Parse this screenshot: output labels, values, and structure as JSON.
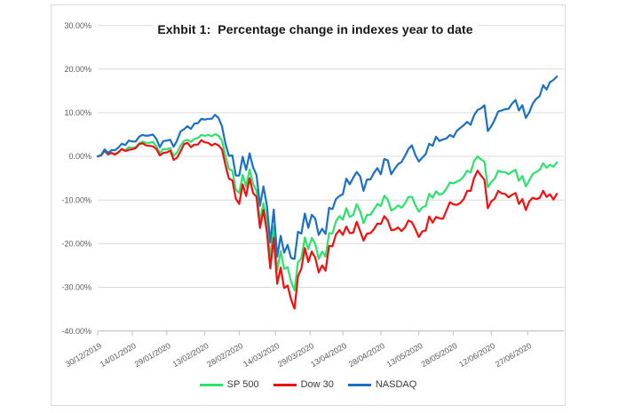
{
  "chart_data": {
    "type": "line",
    "title": "Exhbit 1:  Percentage change in indexes year to date",
    "xlabel": "",
    "ylabel": "",
    "ylim": [
      -40,
      30
    ],
    "grid": "horizontal",
    "legend_position": "bottom",
    "y_ticks": [
      30,
      20,
      10,
      0,
      -10,
      -20,
      -30,
      -40
    ],
    "y_tick_labels": [
      "30.00%",
      "20.00%",
      "10.00%",
      "0.00%",
      "-10.00%",
      "-20.00%",
      "-30.00%",
      "-40.00%"
    ],
    "x_tick_labels": [
      "30/12/2019",
      "14/01/2020",
      "29/01/2020",
      "13/02/2020",
      "28/02/2020",
      "14/03/2020",
      "29/03/2020",
      "13/04/2020",
      "28/04/2020",
      "13/05/2020",
      "28/05/2020",
      "12/06/2020",
      "27/06/2020"
    ],
    "x_tick_indices": [
      0,
      10,
      20,
      31,
      41,
      51.5,
      61.5,
      71,
      82,
      93,
      103,
      114,
      124.5
    ],
    "x_index_max": 135,
    "colors": {
      "grid": "#DCDCDC",
      "axis": "#BFBFBF",
      "axis_text": "#595959",
      "title_text": "#151515",
      "legend_text": "#3a3a3a",
      "frame_border": "#D9D9D9"
    },
    "series": [
      {
        "name": "SP 500",
        "color": "#2BE26D",
        "values": [
          0.0,
          0.3,
          1.1,
          0.4,
          0.8,
          0.5,
          1.0,
          1.7,
          1.4,
          2.1,
          1.9,
          2.1,
          3.0,
          3.4,
          3.1,
          3.1,
          3.3,
          2.3,
          0.7,
          1.7,
          1.6,
          1.9,
          0.1,
          0.9,
          2.4,
          3.5,
          3.8,
          3.3,
          4.0,
          4.2,
          4.9,
          4.7,
          4.9,
          4.6,
          5.1,
          4.7,
          3.6,
          0.1,
          -2.9,
          -3.3,
          -7.6,
          -8.4,
          -4.2,
          -6.9,
          -3.0,
          -6.3,
          -7.9,
          -14.9,
          -10.7,
          -15.1,
          -23.2,
          -16.1,
          -26.1,
          -21.7,
          -25.8,
          -25.4,
          -28.7,
          -30.7,
          -24.2,
          -23.4,
          -18.6,
          -21.3,
          -18.7,
          -20.0,
          -23.5,
          -21.8,
          -23.0,
          -17.6,
          -17.7,
          -14.9,
          -13.7,
          -14.5,
          -11.9,
          -13.9,
          -13.4,
          -11.0,
          -12.6,
          -15.3,
          -13.4,
          -13.4,
          -12.2,
          -10.9,
          -11.4,
          -9.0,
          -9.9,
          -12.4,
          -12.0,
          -11.2,
          -11.8,
          -10.8,
          -9.3,
          -9.3,
          -11.2,
          -12.7,
          -11.7,
          -11.4,
          -8.6,
          -9.5,
          -8.0,
          -8.8,
          -8.5,
          -7.4,
          -6.0,
          -6.2,
          -5.8,
          -5.4,
          -4.6,
          -3.3,
          -3.7,
          -1.1,
          0.0,
          -0.7,
          -1.2,
          -7.1,
          -5.9,
          -5.1,
          -3.3,
          -3.6,
          -3.6,
          -4.1,
          -3.5,
          -3.1,
          -5.6,
          -4.5,
          -6.9,
          -5.5,
          -4.0,
          -3.6,
          -3.1,
          -1.6,
          -2.6,
          -1.9,
          -2.4,
          -1.4
        ]
      },
      {
        "name": "Dow 30",
        "color": "#F40E0E",
        "values": [
          0.0,
          0.2,
          1.4,
          0.5,
          0.8,
          0.4,
          0.9,
          1.7,
          1.2,
          1.5,
          1.6,
          1.9,
          2.8,
          3.0,
          2.5,
          2.4,
          2.3,
          1.7,
          0.2,
          0.8,
          0.9,
          1.3,
          -0.8,
          -0.3,
          1.1,
          2.8,
          3.1,
          2.1,
          2.7,
          2.7,
          3.7,
          3.2,
          3.1,
          2.5,
          2.9,
          2.5,
          1.6,
          -2.0,
          -5.1,
          -5.5,
          -9.7,
          -10.9,
          -6.4,
          -9.1,
          -5.0,
          -8.4,
          -9.3,
          -16.4,
          -12.3,
          -17.4,
          -25.7,
          -18.7,
          -29.2,
          -25.5,
          -30.2,
          -29.6,
          -32.8,
          -34.9,
          -27.5,
          -25.7,
          -21.0,
          -24.2,
          -21.8,
          -23.2,
          -26.6,
          -25.0,
          -26.2,
          -20.5,
          -20.6,
          -17.9,
          -16.9,
          -18.0,
          -16.1,
          -17.6,
          -17.5,
          -15.0,
          -17.1,
          -19.3,
          -17.7,
          -17.6,
          -16.7,
          -15.4,
          -15.5,
          -13.7,
          -14.7,
          -16.9,
          -16.8,
          -16.3,
          -17.1,
          -16.3,
          -14.7,
          -15.1,
          -16.7,
          -18.5,
          -17.2,
          -17.0,
          -13.8,
          -15.2,
          -13.9,
          -14.2,
          -14.3,
          -12.4,
          -10.5,
          -11.0,
          -11.1,
          -10.7,
          -9.8,
          -7.9,
          -7.9,
          -5.0,
          -3.3,
          -4.4,
          -5.4,
          -11.9,
          -10.3,
          -9.7,
          -7.9,
          -8.5,
          -8.6,
          -9.4,
          -8.8,
          -8.4,
          -10.9,
          -9.8,
          -12.3,
          -10.3,
          -9.5,
          -9.8,
          -9.5,
          -7.9,
          -9.3,
          -8.7,
          -9.9,
          -8.6
        ]
      },
      {
        "name": "NASDAQ",
        "color": "#1A70C7",
        "values": [
          0.0,
          0.3,
          1.6,
          0.8,
          1.4,
          1.4,
          2.0,
          2.9,
          2.6,
          3.6,
          3.4,
          3.4,
          4.5,
          4.9,
          4.7,
          4.8,
          5.0,
          4.0,
          2.1,
          3.5,
          3.6,
          3.8,
          2.2,
          3.6,
          5.7,
          6.2,
          6.9,
          6.3,
          7.5,
          7.6,
          8.6,
          8.4,
          8.6,
          8.6,
          9.5,
          8.8,
          6.9,
          2.9,
          0.1,
          0.2,
          -4.4,
          -4.4,
          -0.1,
          -3.1,
          0.7,
          -2.5,
          -4.3,
          -11.3,
          -6.9,
          -11.3,
          -19.7,
          -12.2,
          -23.0,
          -18.2,
          -22.1,
          -20.3,
          -23.3,
          -23.5,
          -17.3,
          -17.7,
          -13.1,
          -16.4,
          -13.4,
          -14.2,
          -18.0,
          -16.6,
          -17.8,
          -11.8,
          -12.1,
          -9.8,
          -9.1,
          -8.7,
          -5.1,
          -6.4,
          -4.9,
          -3.6,
          -4.6,
          -7.9,
          -5.3,
          -5.3,
          -3.8,
          -2.7,
          -4.1,
          -0.6,
          -0.9,
          -4.1,
          -2.9,
          -1.8,
          -1.3,
          0.1,
          1.7,
          2.5,
          0.3,
          -1.2,
          -0.3,
          0.5,
          2.9,
          2.4,
          4.5,
          3.5,
          3.9,
          4.1,
          4.9,
          4.4,
          5.8,
          6.5,
          7.1,
          7.9,
          7.2,
          9.4,
          10.6,
          11.0,
          11.7,
          5.8,
          6.9,
          8.4,
          10.3,
          10.5,
          10.8,
          10.9,
          12.1,
          12.9,
          10.5,
          11.7,
          8.8,
          10.1,
          12.1,
          13.2,
          13.8,
          16.3,
          15.3,
          17.0,
          17.5,
          18.3
        ]
      }
    ]
  }
}
